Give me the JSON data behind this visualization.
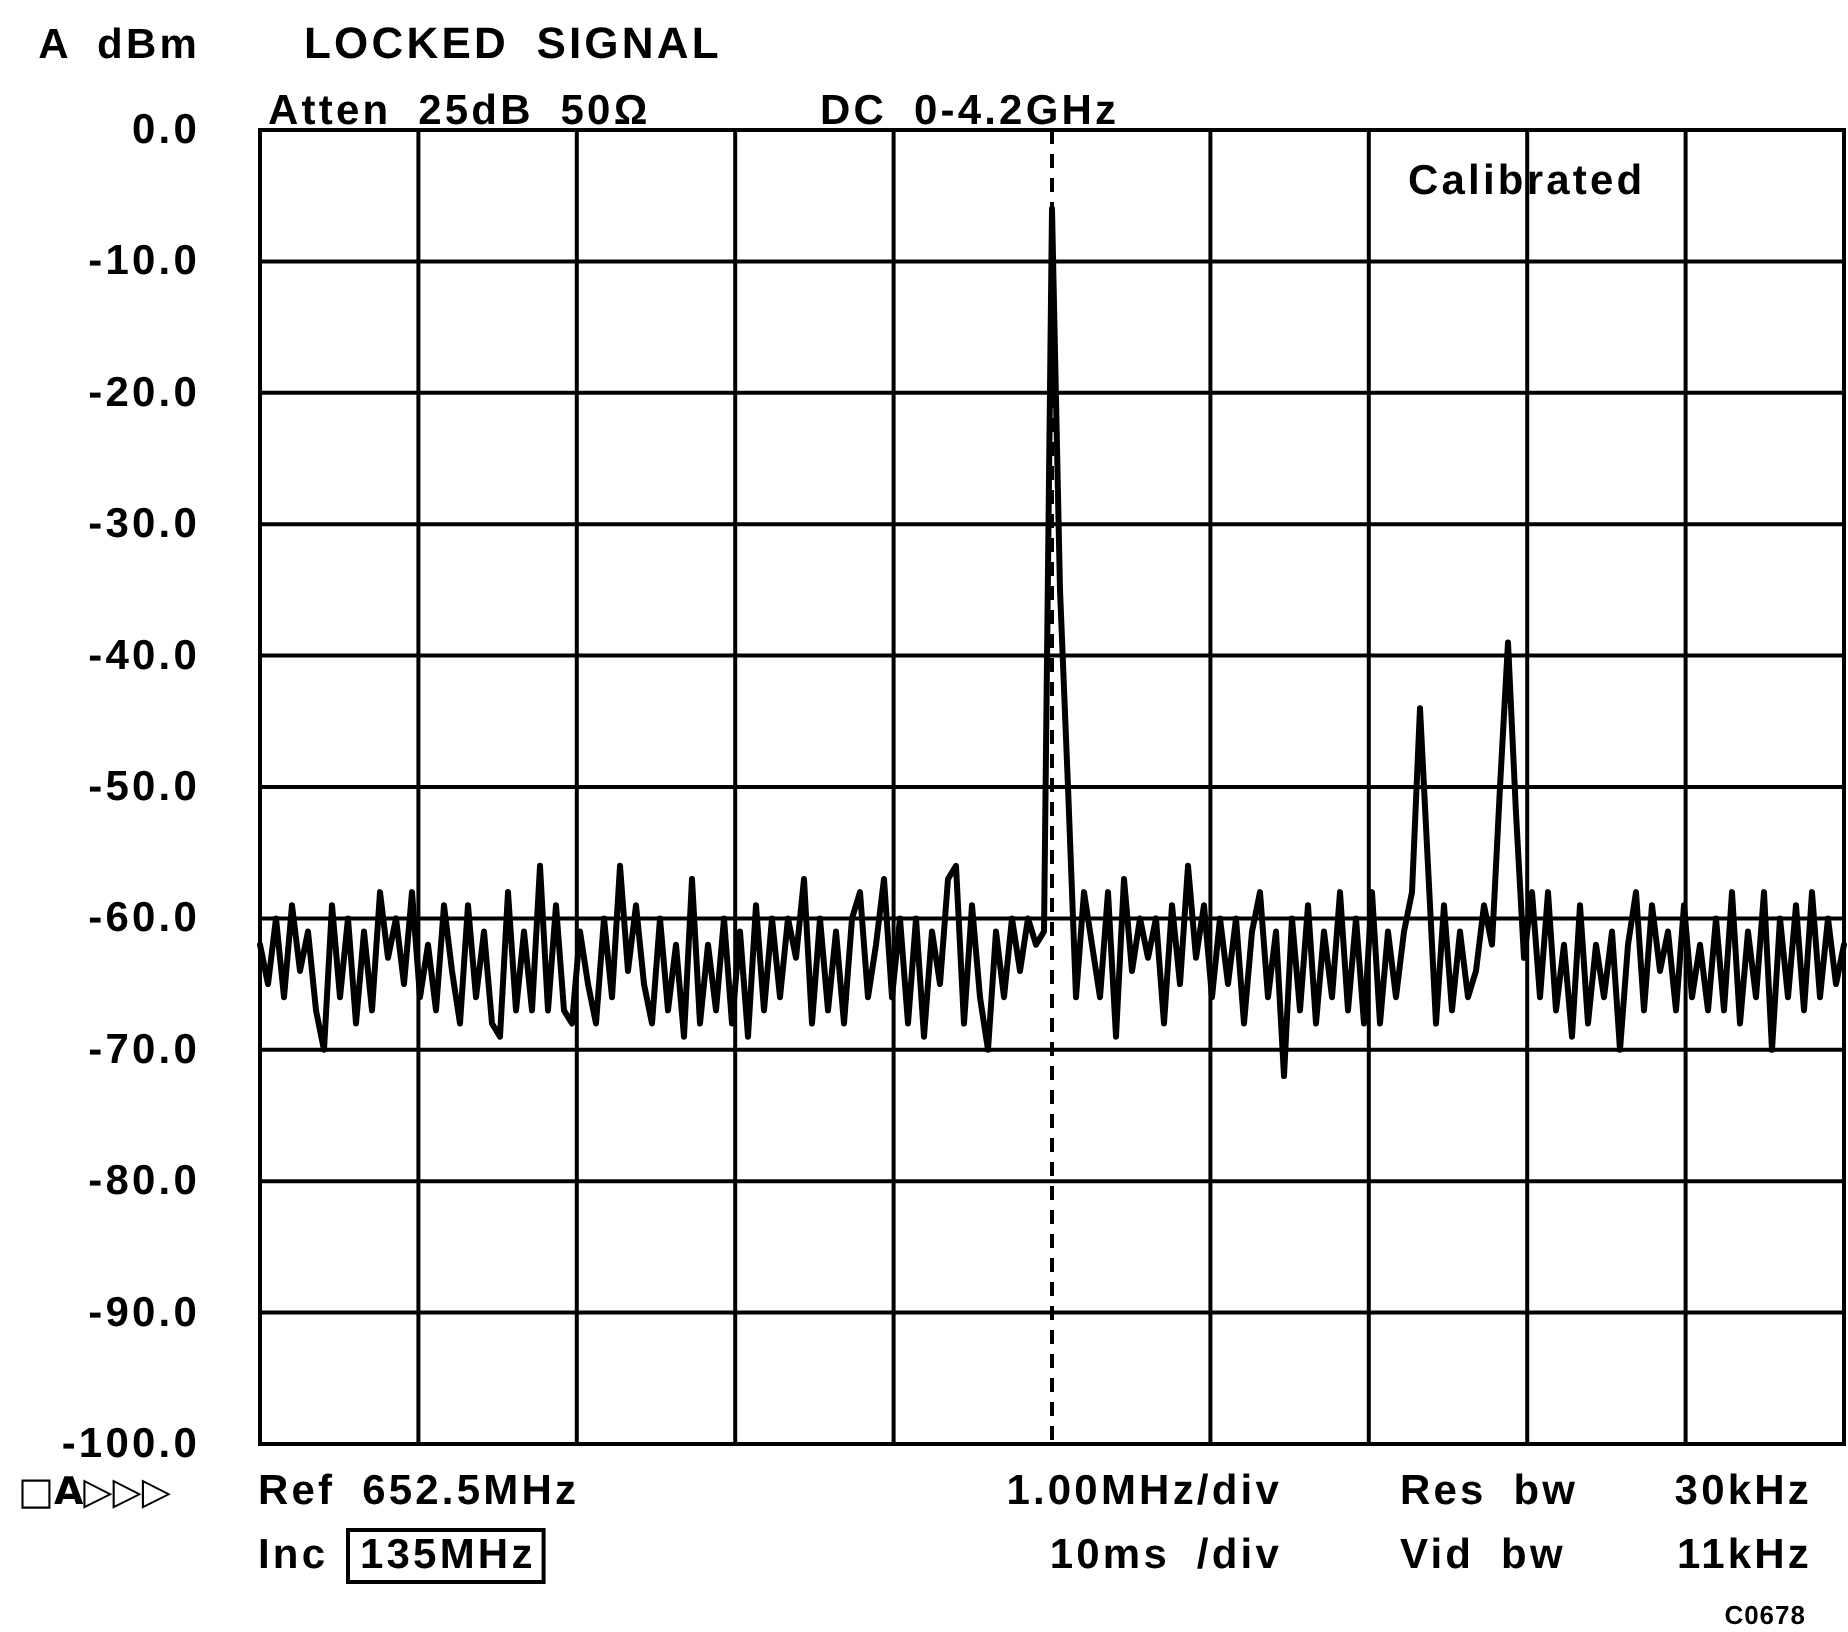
{
  "chart_data": {
    "type": "line",
    "title": "LOCKED SIGNAL",
    "ylabel": "A dBm",
    "annotations": [
      "Atten 25dB 50Ω",
      "DC 0-4.2GHz",
      "Calibrated",
      "□A▷▷▷",
      "Ref 652.5MHz",
      "1.00MHz/div",
      "Res bw",
      "30kHz",
      "Inc",
      "135MHz",
      "10ms /div",
      "Vid bw",
      "11kHz",
      "C0678"
    ],
    "categories": [
      null,
      null,
      null,
      null,
      null,
      null,
      null,
      null,
      null,
      null,
      null,
      null,
      null,
      null,
      null,
      null,
      null,
      null,
      null,
      null,
      null,
      null,
      null,
      null,
      null,
      null,
      null,
      null,
      null,
      null,
      null,
      null,
      null,
      null,
      null,
      null,
      null,
      null,
      null,
      null,
      null,
      null,
      null,
      null,
      null,
      null,
      null,
      null,
      null,
      null,
      null,
      null,
      null,
      null,
      null,
      null,
      null,
      null,
      null,
      null,
      null,
      null,
      null,
      null,
      null,
      null,
      null,
      null,
      null,
      null,
      null,
      null,
      null,
      null,
      null,
      null,
      null,
      null,
      null,
      null,
      null,
      null,
      null,
      null,
      null,
      null,
      null,
      null,
      null,
      null,
      null,
      null,
      null,
      null,
      null,
      null,
      null,
      null,
      null,
      null,
      null,
      null,
      null,
      null,
      null,
      null,
      null,
      null,
      null,
      null,
      null,
      null,
      null,
      null,
      null,
      null,
      null,
      null,
      null,
      null,
      null,
      null,
      null,
      null,
      null,
      null,
      null,
      null,
      null,
      null,
      null,
      null,
      null,
      null,
      null,
      null,
      null,
      null,
      null,
      null,
      null,
      null,
      null,
      null,
      null,
      null,
      null,
      null,
      null,
      null,
      null,
      null,
      null,
      null,
      null,
      null,
      null,
      null,
      null,
      null,
      null,
      null,
      null,
      null,
      null,
      null,
      null,
      null,
      null,
      null,
      null,
      null,
      null,
      null,
      null,
      null,
      null,
      null,
      null,
      null,
      null,
      null,
      null,
      null,
      null,
      null,
      null,
      null,
      null,
      null,
      null,
      null,
      null,
      null,
      null,
      null,
      null,
      null,
      null
    ],
    "series": [
      {
        "color": "#000000",
        "values": [
          -62,
          -65,
          -60,
          -66,
          -59,
          -64,
          -61,
          -67,
          -70,
          -59,
          -66,
          -60,
          -68,
          -61,
          -67,
          -58,
          -63,
          -60,
          -65,
          -58,
          -66,
          -62,
          -67,
          -59,
          -64,
          -68,
          -59,
          -66,
          -61,
          -68,
          -69,
          -58,
          -67,
          -61,
          -67,
          -56,
          -67,
          -59,
          -67,
          -68,
          -61,
          -65,
          -68,
          -60,
          -66,
          -56,
          -64,
          -59,
          -65,
          -68,
          -60,
          -67,
          -62,
          -69,
          -57,
          -68,
          -62,
          -67,
          -60,
          -68,
          -61,
          -69,
          -59,
          -67,
          -60,
          -66,
          -60,
          -63,
          -57,
          -68,
          -60,
          -67,
          -61,
          -68,
          -60,
          -58,
          -66,
          -62,
          -57,
          -66,
          -60,
          -68,
          -60,
          -69,
          -61,
          -65,
          -57,
          -56,
          -68,
          -59,
          -66,
          -70,
          -61,
          -66,
          -60,
          -64,
          -60,
          -62,
          -61,
          -6,
          -35,
          -50,
          -66,
          -58,
          -62,
          -66,
          -58,
          -69,
          -57,
          -64,
          -60,
          -63,
          -60,
          -68,
          -59,
          -65,
          -56,
          -63,
          -59,
          -66,
          -60,
          -65,
          -60,
          -68,
          -61,
          -58,
          -66,
          -61,
          -72,
          -60,
          -67,
          -59,
          -68,
          -61,
          -66,
          -58,
          -67,
          -60,
          -68,
          -58,
          -68,
          -61,
          -66,
          -61,
          -58,
          -44,
          -56,
          -68,
          -59,
          -67,
          -61,
          -66,
          -64,
          -59,
          -62,
          -50,
          -39,
          -52,
          -63,
          -58,
          -66,
          -58,
          -67,
          -62,
          -69,
          -59,
          -68,
          -62,
          -66,
          -61,
          -70,
          -62,
          -58,
          -67,
          -59,
          -64,
          -61,
          -67,
          -59,
          -66,
          -62,
          -67,
          -60,
          -67,
          -58,
          -68,
          -61,
          -66,
          -58,
          -70,
          -60,
          -66,
          -59,
          -67,
          -58,
          -66,
          -60,
          -65,
          -62
        ]
      }
    ],
    "ylim": [
      -100,
      0
    ],
    "yticks": [
      {
        "value": 0,
        "label": "0.0"
      },
      {
        "value": -10,
        "label": "-10.0"
      },
      {
        "value": -20,
        "label": "-20.0"
      },
      {
        "value": -30,
        "label": "-30.0"
      },
      {
        "value": -40,
        "label": "-40.0"
      },
      {
        "value": -50,
        "label": "-50.0"
      },
      {
        "value": -60,
        "label": "-60.0"
      },
      {
        "value": -70,
        "label": "-70.0"
      },
      {
        "value": -80,
        "label": "-80.0"
      },
      {
        "value": -90,
        "label": "-90.0"
      },
      {
        "value": -100,
        "label": "-100.0"
      }
    ],
    "grid": true,
    "line_style": "solid"
  }
}
